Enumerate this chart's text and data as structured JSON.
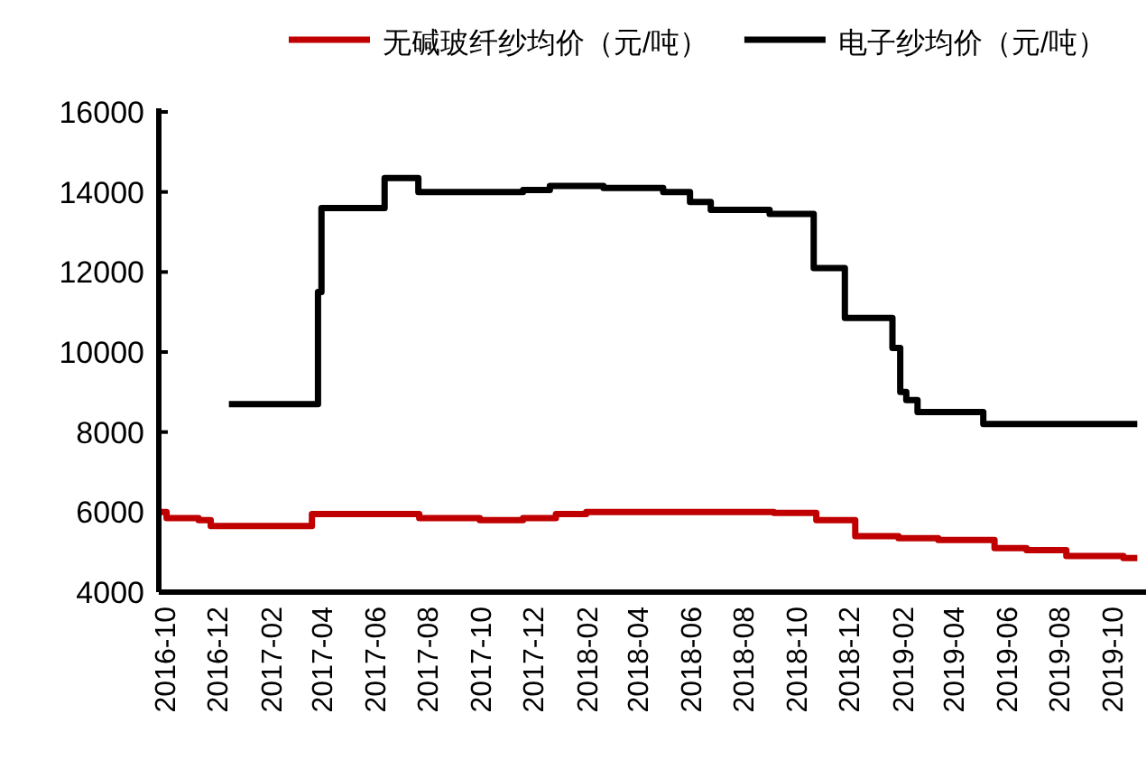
{
  "chart_data": {
    "type": "step",
    "legend": "top",
    "xlim": [
      "2016-09-25",
      "2019-11-08"
    ],
    "ylim": [
      4000,
      16000
    ],
    "yticks": [
      4000,
      6000,
      8000,
      10000,
      12000,
      14000,
      16000
    ],
    "xticks": [
      {
        "value": "2016-10-01",
        "label": "2016-10"
      },
      {
        "value": "2016-12-01",
        "label": "2016-12"
      },
      {
        "value": "2017-02-01",
        "label": "2017-02"
      },
      {
        "value": "2017-04-01",
        "label": "2017-04"
      },
      {
        "value": "2017-06-01",
        "label": "2017-06"
      },
      {
        "value": "2017-08-01",
        "label": "2017-08"
      },
      {
        "value": "2017-10-01",
        "label": "2017-10"
      },
      {
        "value": "2017-12-01",
        "label": "2017-12"
      },
      {
        "value": "2018-02-01",
        "label": "2018-02"
      },
      {
        "value": "2018-04-01",
        "label": "2018-04"
      },
      {
        "value": "2018-06-01",
        "label": "2018-06"
      },
      {
        "value": "2018-08-01",
        "label": "2018-08"
      },
      {
        "value": "2018-10-01",
        "label": "2018-10"
      },
      {
        "value": "2018-12-01",
        "label": "2018-12"
      },
      {
        "value": "2019-02-01",
        "label": "2019-02"
      },
      {
        "value": "2019-04-01",
        "label": "2019-04"
      },
      {
        "value": "2019-06-01",
        "label": "2019-06"
      },
      {
        "value": "2019-08-01",
        "label": "2019-08"
      },
      {
        "value": "2019-10-01",
        "label": "2019-10"
      }
    ],
    "series": [
      {
        "name": "无碱玻纤纱均价（元/吨）",
        "color": "#c00000",
        "x": [
          "2016-09-25",
          "2016-10-04",
          "2016-11-10",
          "2016-11-24",
          "2017-03-21",
          "2017-07-23",
          "2017-10-01",
          "2017-11-20",
          "2017-12-28",
          "2018-02-01",
          "2018-09-06",
          "2018-10-25",
          "2018-12-09",
          "2019-01-28",
          "2019-03-15",
          "2019-05-19",
          "2019-06-25",
          "2019-08-10",
          "2019-10-15",
          "2019-10-31"
        ],
        "values": [
          6000,
          5850,
          5800,
          5650,
          5950,
          5850,
          5800,
          5850,
          5950,
          6000,
          5980,
          5800,
          5400,
          5350,
          5300,
          5100,
          5050,
          4900,
          4850,
          4850
        ]
      },
      {
        "name": "电子纱均价（元/吨）",
        "color": "#000000",
        "x": [
          "2016-12-15",
          "2017-03-28",
          "2017-04-01",
          "2017-06-13",
          "2017-07-22",
          "2017-11-20",
          "2017-12-21",
          "2018-02-21",
          "2018-05-01",
          "2018-06-01",
          "2018-06-25",
          "2018-09-01",
          "2018-10-22",
          "2018-11-27",
          "2019-01-21",
          "2019-01-30",
          "2019-02-06",
          "2019-02-19",
          "2019-05-06",
          "2019-10-31"
        ],
        "values": [
          8700,
          11500,
          13600,
          14350,
          14000,
          14050,
          14150,
          14100,
          14000,
          13750,
          13550,
          13450,
          12100,
          10850,
          10100,
          9000,
          8800,
          8500,
          8200,
          8200
        ]
      }
    ]
  }
}
